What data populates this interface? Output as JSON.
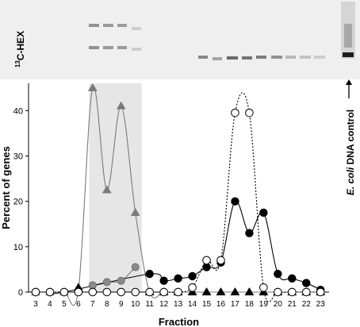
{
  "gel": {
    "label_superscript": "13",
    "label_main": "C-HEX",
    "control_label_italic": "E. coli",
    "control_label_rest": " DNA control"
  },
  "chart_data": {
    "type": "line",
    "xlabel": "Fraction",
    "ylabel": "Percent of genes",
    "xlim": [
      2.5,
      23.6
    ],
    "ylim": [
      0,
      46
    ],
    "yticks": [
      0,
      10,
      20,
      30,
      40
    ],
    "xticks": [
      3,
      4,
      5,
      6,
      7,
      8,
      9,
      10,
      11,
      12,
      13,
      14,
      15,
      16,
      17,
      18,
      19,
      20,
      21,
      22,
      23
    ],
    "shaded_range": [
      6.75,
      10.45
    ],
    "series": [
      {
        "marker": "triangle",
        "color": "#7a7a7a",
        "line_style": "solid",
        "points": [
          [
            3,
            0
          ],
          [
            4,
            0
          ],
          [
            5,
            0
          ],
          [
            6,
            0.5
          ],
          [
            7,
            45
          ],
          [
            8,
            22.5
          ],
          [
            9,
            41
          ],
          [
            10,
            17.5
          ],
          [
            11,
            0
          ],
          [
            12,
            0
          ],
          [
            13,
            0
          ],
          [
            14,
            0
          ],
          [
            15,
            0
          ],
          [
            16,
            0
          ],
          [
            17,
            0
          ],
          [
            18,
            0
          ],
          [
            19,
            0
          ],
          [
            20,
            0
          ],
          [
            21,
            0
          ],
          [
            22,
            0
          ],
          [
            23,
            0
          ]
        ]
      },
      {
        "marker": "circle-gray",
        "color": "#7a7a7a",
        "line_style": "solid",
        "points": [
          [
            7,
            1.5
          ],
          [
            8,
            2.2
          ],
          [
            9,
            2.5
          ],
          [
            10,
            5.5
          ]
        ]
      },
      {
        "marker": "triangle-black",
        "color": "#000000",
        "line_style": "solid",
        "points": [
          [
            6,
            1
          ],
          [
            11,
            0
          ],
          [
            12,
            0
          ],
          [
            13,
            0
          ],
          [
            14,
            0
          ],
          [
            15,
            0
          ],
          [
            16,
            0
          ],
          [
            17,
            0
          ],
          [
            18,
            0
          ],
          [
            19,
            0
          ],
          [
            20,
            0
          ],
          [
            21,
            0
          ],
          [
            22,
            0
          ],
          [
            23,
            0
          ]
        ]
      },
      {
        "marker": "circle-filled",
        "color": "#000000",
        "line_style": "solid",
        "points": [
          [
            3,
            0
          ],
          [
            4,
            0
          ],
          [
            5,
            0
          ],
          [
            11,
            4
          ],
          [
            12,
            2.5
          ],
          [
            13,
            3
          ],
          [
            14,
            3.5
          ],
          [
            15,
            5.5
          ],
          [
            16,
            6.5
          ],
          [
            17,
            20
          ],
          [
            18,
            13
          ],
          [
            19,
            17.5
          ],
          [
            20,
            4
          ],
          [
            21,
            3
          ],
          [
            22,
            2
          ],
          [
            23,
            0.5
          ]
        ]
      },
      {
        "marker": "circle-open",
        "color": "#000000",
        "line_style": "dotted",
        "points": [
          [
            3,
            0
          ],
          [
            4,
            0
          ],
          [
            5,
            0
          ],
          [
            6,
            0
          ],
          [
            7,
            0
          ],
          [
            8,
            0
          ],
          [
            9,
            0
          ],
          [
            10,
            0
          ],
          [
            11,
            0
          ],
          [
            12,
            0
          ],
          [
            13,
            0
          ],
          [
            14,
            1
          ],
          [
            15,
            7
          ],
          [
            16,
            7
          ],
          [
            17,
            39.5
          ],
          [
            18,
            39.5
          ],
          [
            19,
            1
          ],
          [
            20,
            0
          ],
          [
            21,
            0
          ],
          [
            22,
            0
          ],
          [
            23,
            0
          ]
        ]
      }
    ]
  }
}
